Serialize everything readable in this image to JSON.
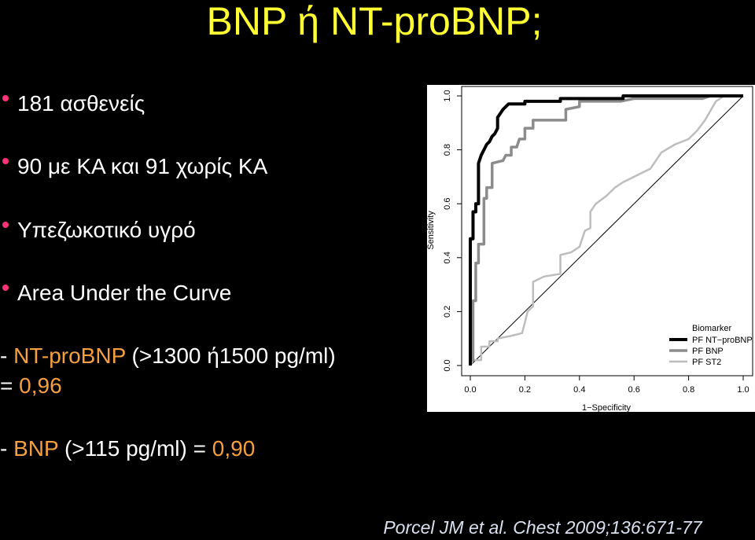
{
  "slide": {
    "title": "BNP ή NT-proBNP;",
    "bullets": [
      "181 ασθενείς",
      "90 με ΚΑ και 91 χωρίς ΚΑ",
      "Υπεζωκοτικό υγρό",
      "Area Under the Curve"
    ],
    "auc_lines": [
      [
        "-",
        "NT-proBNP",
        "(>1300 ή1500 pg/ml)"
      ],
      [
        "=",
        "0,96"
      ],
      [
        "-",
        "BNP",
        "(>115 pg/ml) =",
        "0,90"
      ]
    ],
    "citation": "Porcel JM et al. Chest 2009;136:671-77"
  },
  "chart_data": {
    "type": "line",
    "x_label": "1−Specificity",
    "y_label": "Sensitivity",
    "legend_title": "Biomarker",
    "legend": "bottom-right",
    "xlim": [
      0,
      1
    ],
    "ylim": [
      0,
      1
    ],
    "xticks": [
      {
        "value": 0,
        "label": "0.0"
      },
      0.2,
      0.4,
      0.6,
      0.8,
      {
        "value": 1,
        "label": "1.0"
      }
    ],
    "yticks": [
      {
        "value": 0,
        "label": "0.0"
      },
      0.2,
      0.4,
      0.6,
      0.8,
      {
        "value": 1,
        "label": "1.0"
      }
    ],
    "series": [
      {
        "name": "PF NT−proBNP",
        "color": "#000000",
        "width": 4,
        "x": [
          0,
          0,
          0,
          0.01,
          0.01,
          0.02,
          0.02,
          0.03,
          0.03,
          0.04,
          0.05,
          0.06,
          0.07,
          0.08,
          0.09,
          0.1,
          0.1,
          0.12,
          0.14,
          0.2,
          0.2,
          0.33,
          0.33,
          0.56,
          0.56,
          1
        ],
        "values": [
          0,
          0.05,
          0.47,
          0.47,
          0.57,
          0.57,
          0.6,
          0.6,
          0.75,
          0.78,
          0.8,
          0.82,
          0.83,
          0.85,
          0.86,
          0.88,
          0.92,
          0.95,
          0.97,
          0.97,
          0.98,
          0.98,
          0.99,
          0.99,
          1,
          1
        ]
      },
      {
        "name": "PF BNP",
        "color": "#8c8c8c",
        "width": 3.5,
        "x": [
          0,
          0,
          0.01,
          0.01,
          0.02,
          0.02,
          0.03,
          0.03,
          0.05,
          0.05,
          0.06,
          0.06,
          0.08,
          0.08,
          0.12,
          0.13,
          0.15,
          0.15,
          0.17,
          0.18,
          0.2,
          0.2,
          0.23,
          0.23,
          0.35,
          0.35,
          0.4,
          0.4,
          0.55,
          0.6,
          0.85,
          0.88,
          1
        ],
        "values": [
          0,
          0.02,
          0.02,
          0.24,
          0.24,
          0.38,
          0.38,
          0.45,
          0.45,
          0.62,
          0.62,
          0.66,
          0.66,
          0.75,
          0.76,
          0.78,
          0.78,
          0.81,
          0.81,
          0.84,
          0.84,
          0.88,
          0.88,
          0.91,
          0.91,
          0.95,
          0.96,
          0.98,
          0.98,
          0.99,
          0.99,
          1,
          1
        ]
      },
      {
        "name": "PF ST2",
        "color": "#bdbdbd",
        "width": 2.5,
        "x": [
          0,
          0.01,
          0.04,
          0.04,
          0.07,
          0.07,
          0.1,
          0.1,
          0.15,
          0.19,
          0.2,
          0.21,
          0.23,
          0.23,
          0.25,
          0.27,
          0.33,
          0.33,
          0.37,
          0.4,
          0.42,
          0.44,
          0.44,
          0.46,
          0.5,
          0.53,
          0.56,
          0.6,
          0.66,
          0.7,
          0.75,
          0.8,
          0.83,
          0.86,
          0.9,
          0.93,
          1
        ],
        "values": [
          0,
          0.02,
          0.02,
          0.07,
          0.07,
          0.09,
          0.09,
          0.1,
          0.11,
          0.12,
          0.16,
          0.2,
          0.22,
          0.31,
          0.32,
          0.33,
          0.34,
          0.41,
          0.42,
          0.44,
          0.5,
          0.51,
          0.57,
          0.6,
          0.63,
          0.66,
          0.68,
          0.7,
          0.73,
          0.79,
          0.82,
          0.84,
          0.87,
          0.91,
          0.98,
          1,
          1
        ]
      }
    ]
  }
}
